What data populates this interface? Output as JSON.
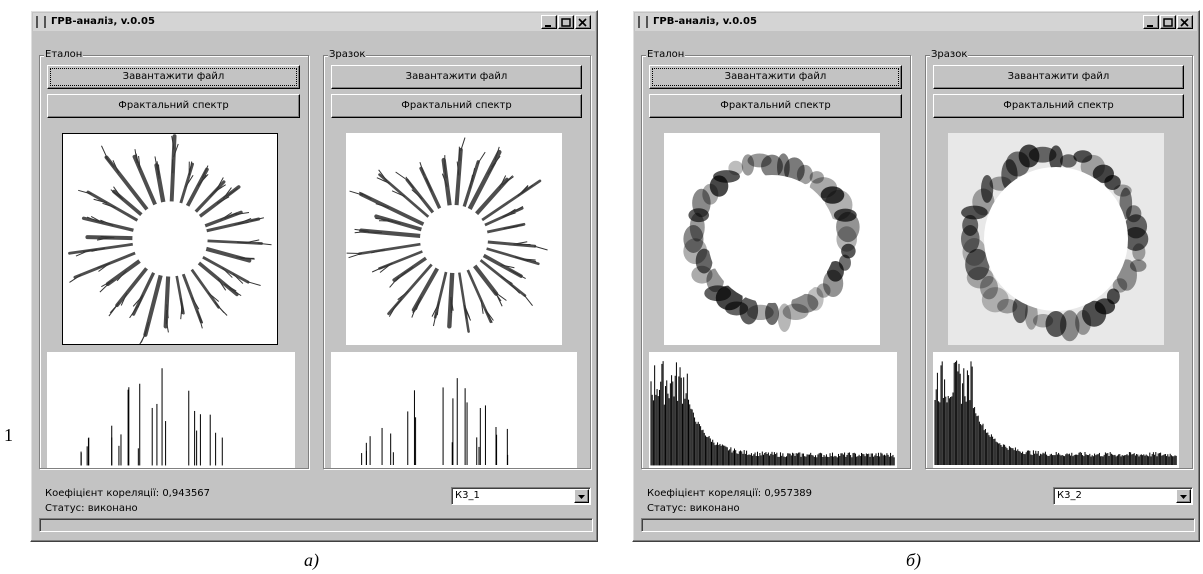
{
  "margin_label": "1",
  "windows": [
    {
      "title": "ГРВ-аналіз, v.0.05",
      "panels": [
        {
          "label": "Еталон",
          "buttons": [
            "Завантажити файл",
            "Фрактальний спектр"
          ]
        },
        {
          "label": "Зразок",
          "buttons": [
            "Завантажити файл",
            "Фрактальний спектр"
          ]
        }
      ],
      "correlation_label": "Коефіцієнт кореляції:",
      "correlation_value": "0,943567",
      "status_label": "Статус:",
      "status_value": "виконано",
      "dropdown": "К3_1",
      "caption": "а)"
    },
    {
      "title": "ГРВ-аналіз, v.0.05",
      "panels": [
        {
          "label": "Еталон",
          "buttons": [
            "Завантажити файл",
            "Фрактальний спектр"
          ]
        },
        {
          "label": "Зразок",
          "buttons": [
            "Завантажити файл",
            "Фрактальний спектр"
          ]
        }
      ],
      "correlation_label": "Коефіцієнт кореляції:",
      "correlation_value": "0,957389",
      "status_label": "Статус:",
      "status_value": "виконано",
      "dropdown": "К3_2",
      "caption": "б)"
    }
  ]
}
